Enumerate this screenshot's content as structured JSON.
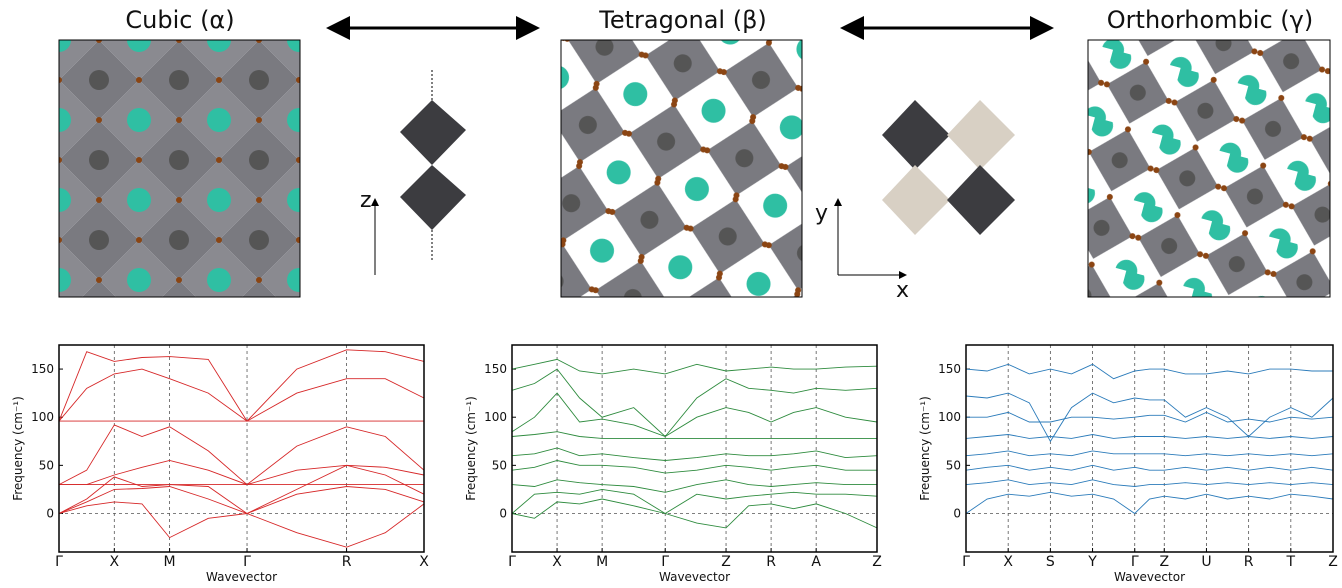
{
  "panels": [
    {
      "title": "Cubic (α)"
    },
    {
      "title": "Tetragonal (β)"
    },
    {
      "title": "Orthorhombic (γ)"
    }
  ],
  "axis_letters": [
    "z",
    "y",
    "x"
  ],
  "chart_data": [
    {
      "type": "line",
      "color": "#d62728",
      "xlabel": "Wavevector",
      "ylabel": "Frequency (cm⁻¹)",
      "x": [
        0,
        0.5,
        1,
        1.5,
        2,
        2.7,
        3.4,
        4.3,
        5.2,
        5.9,
        6.6
      ],
      "xlim": [
        0,
        6.6
      ],
      "xticks": [
        {
          "value": 0,
          "label": "Γ"
        },
        {
          "value": 1,
          "label": "X"
        },
        {
          "value": 2,
          "label": "M"
        },
        {
          "value": 3.4,
          "label": "Γ"
        },
        {
          "value": 5.2,
          "label": "R"
        },
        {
          "value": 6.6,
          "label": "X"
        }
      ],
      "ylim": [
        -40,
        175
      ],
      "yticks": [
        0,
        50,
        100,
        150
      ],
      "series": [
        {
          "values": [
            96,
            168,
            158,
            162,
            163,
            160,
            96,
            150,
            170,
            168,
            158
          ]
        },
        {
          "values": [
            96,
            130,
            145,
            150,
            140,
            125,
            96,
            125,
            140,
            140,
            120
          ]
        },
        {
          "values": [
            96,
            96,
            96,
            96,
            96,
            96,
            96,
            96,
            96,
            96,
            96
          ]
        },
        {
          "values": [
            30,
            45,
            92,
            80,
            90,
            65,
            30,
            70,
            90,
            80,
            45
          ]
        },
        {
          "values": [
            30,
            30,
            40,
            48,
            55,
            45,
            30,
            45,
            50,
            48,
            40
          ]
        },
        {
          "values": [
            30,
            30,
            30,
            30,
            30,
            30,
            30,
            30,
            30,
            30,
            30
          ]
        },
        {
          "values": [
            0,
            15,
            38,
            28,
            30,
            28,
            0,
            25,
            50,
            40,
            20
          ]
        },
        {
          "values": [
            0,
            12,
            25,
            26,
            28,
            15,
            0,
            20,
            28,
            25,
            12
          ]
        },
        {
          "values": [
            0,
            8,
            12,
            10,
            -25,
            -5,
            0,
            -20,
            -35,
            -20,
            10
          ]
        }
      ]
    },
    {
      "type": "line",
      "color": "#2e8b3e",
      "xlabel": "Wavevector",
      "ylabel": "Frequency (cm⁻¹)",
      "x": [
        0,
        0.5,
        1,
        1.5,
        2,
        2.7,
        3.4,
        4.1,
        4.75,
        5.25,
        5.75,
        6.25,
        6.75,
        7.4,
        8.1
      ],
      "xlim": [
        0,
        8.1
      ],
      "xticks": [
        {
          "value": 0,
          "label": "Γ"
        },
        {
          "value": 1,
          "label": "X"
        },
        {
          "value": 2,
          "label": "M"
        },
        {
          "value": 3.4,
          "label": "Γ"
        },
        {
          "value": 4.75,
          "label": "Z"
        },
        {
          "value": 5.75,
          "label": "R"
        },
        {
          "value": 6.75,
          "label": "A"
        },
        {
          "value": 8.1,
          "label": "Z"
        }
      ],
      "ylim": [
        -40,
        175
      ],
      "yticks": [
        0,
        50,
        100,
        150
      ],
      "series": [
        {
          "values": [
            150,
            155,
            160,
            148,
            145,
            150,
            145,
            155,
            148,
            150,
            152,
            150,
            150,
            152,
            153
          ]
        },
        {
          "values": [
            128,
            135,
            150,
            120,
            100,
            110,
            80,
            120,
            140,
            130,
            128,
            125,
            130,
            128,
            130
          ]
        },
        {
          "values": [
            85,
            100,
            125,
            95,
            98,
            92,
            80,
            100,
            110,
            105,
            95,
            105,
            110,
            100,
            95
          ]
        },
        {
          "values": [
            80,
            82,
            85,
            80,
            78,
            78,
            78,
            78,
            78,
            78,
            78,
            78,
            78,
            78,
            78
          ]
        },
        {
          "values": [
            60,
            62,
            68,
            60,
            62,
            58,
            55,
            58,
            62,
            60,
            60,
            62,
            65,
            58,
            60
          ]
        },
        {
          "values": [
            45,
            48,
            55,
            50,
            50,
            48,
            42,
            45,
            50,
            48,
            45,
            48,
            50,
            45,
            45
          ]
        },
        {
          "values": [
            30,
            28,
            35,
            32,
            30,
            28,
            22,
            30,
            35,
            30,
            28,
            30,
            32,
            30,
            30
          ]
        },
        {
          "values": [
            0,
            20,
            22,
            20,
            25,
            20,
            0,
            20,
            15,
            18,
            20,
            22,
            20,
            20,
            18
          ]
        },
        {
          "values": [
            0,
            -5,
            12,
            10,
            15,
            8,
            0,
            -10,
            -15,
            8,
            10,
            5,
            10,
            0,
            -15
          ]
        }
      ]
    },
    {
      "type": "line",
      "color": "#2b7bba",
      "xlabel": "Wavevector",
      "ylabel": "Frequency (cm⁻¹)",
      "x": [
        0,
        0.5,
        1,
        1.5,
        2,
        2.5,
        3,
        3.5,
        4,
        4.35,
        4.7,
        5.2,
        5.7,
        6.2,
        6.7,
        7.2,
        7.7,
        8.2,
        8.7
      ],
      "xlim": [
        0,
        8.7
      ],
      "xticks": [
        {
          "value": 0,
          "label": "Γ"
        },
        {
          "value": 1,
          "label": "X"
        },
        {
          "value": 2,
          "label": "S"
        },
        {
          "value": 3,
          "label": "Y"
        },
        {
          "value": 4,
          "label": "Γ"
        },
        {
          "value": 4.7,
          "label": "Z"
        },
        {
          "value": 5.7,
          "label": "U"
        },
        {
          "value": 6.7,
          "label": "R"
        },
        {
          "value": 7.7,
          "label": "T"
        },
        {
          "value": 8.7,
          "label": "Z"
        }
      ],
      "ylim": [
        -40,
        175
      ],
      "yticks": [
        0,
        50,
        100,
        150
      ],
      "series": [
        {
          "values": [
            150,
            148,
            155,
            145,
            150,
            145,
            155,
            140,
            148,
            150,
            150,
            145,
            145,
            148,
            145,
            150,
            150,
            148,
            148
          ]
        },
        {
          "values": [
            122,
            120,
            125,
            115,
            75,
            110,
            125,
            115,
            120,
            118,
            118,
            100,
            110,
            100,
            80,
            100,
            110,
            100,
            120
          ]
        },
        {
          "values": [
            100,
            100,
            105,
            95,
            95,
            100,
            100,
            98,
            100,
            102,
            102,
            95,
            105,
            95,
            98,
            95,
            100,
            98,
            100
          ]
        },
        {
          "values": [
            78,
            80,
            82,
            78,
            80,
            78,
            82,
            78,
            80,
            80,
            80,
            78,
            80,
            78,
            80,
            78,
            80,
            78,
            80
          ]
        },
        {
          "values": [
            60,
            62,
            65,
            60,
            62,
            60,
            65,
            62,
            62,
            62,
            62,
            60,
            62,
            60,
            62,
            60,
            62,
            60,
            62
          ]
        },
        {
          "values": [
            45,
            48,
            50,
            45,
            48,
            45,
            50,
            45,
            48,
            45,
            45,
            48,
            45,
            48,
            45,
            48,
            45,
            48,
            45
          ]
        },
        {
          "values": [
            30,
            32,
            35,
            30,
            32,
            30,
            35,
            30,
            28,
            30,
            30,
            32,
            30,
            32,
            30,
            32,
            30,
            32,
            30
          ]
        },
        {
          "values": [
            0,
            15,
            20,
            18,
            22,
            18,
            20,
            15,
            0,
            15,
            18,
            15,
            20,
            15,
            18,
            15,
            20,
            18,
            15
          ]
        }
      ]
    }
  ]
}
